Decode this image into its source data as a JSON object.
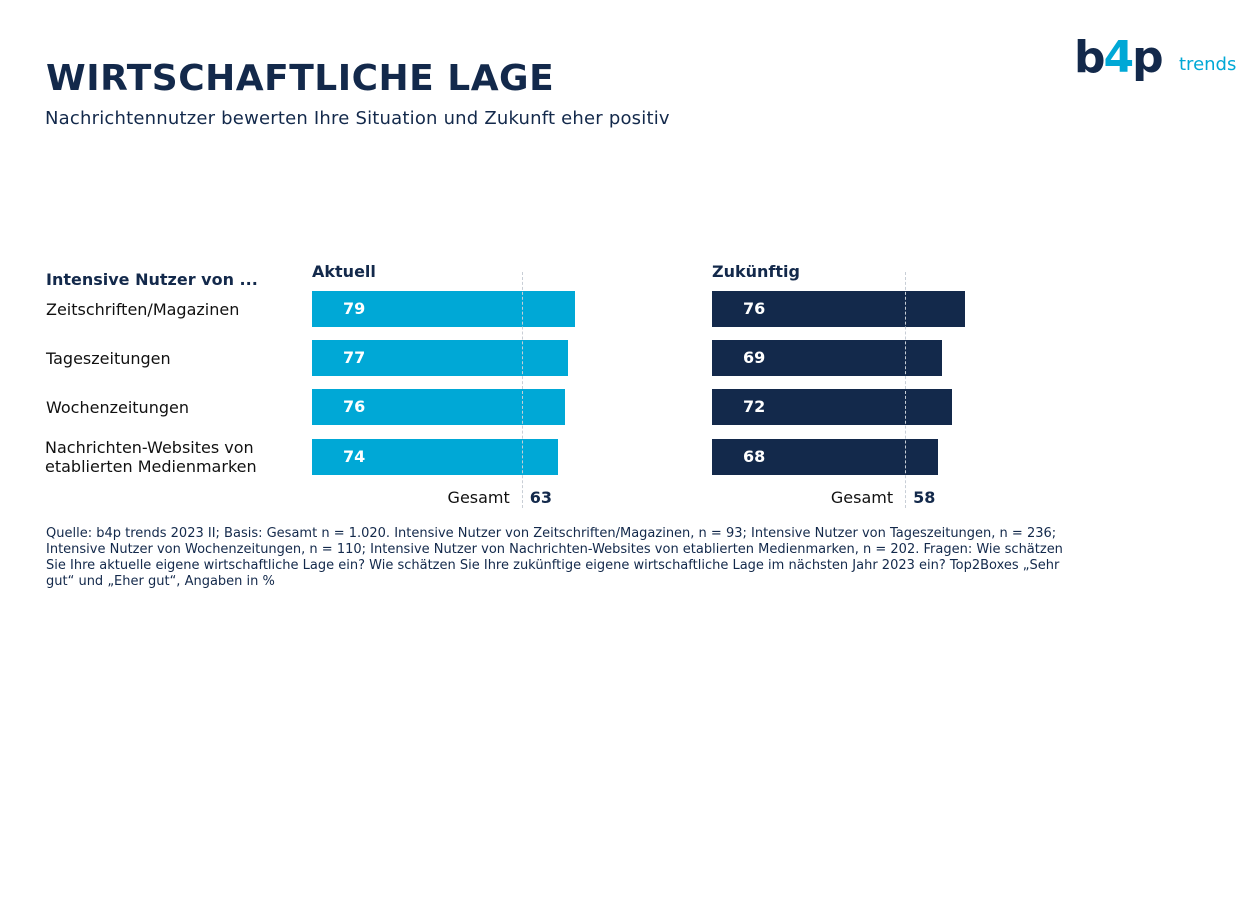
{
  "header": {
    "title": "WIRTSCHAFTLICHE LAGE",
    "subtitle": "Nachrichtennutzer bewerten Ihre Situation und Zukunft eher positiv"
  },
  "logo": {
    "text": "b4p trends"
  },
  "colors": {
    "aktuell": "#00a8d6",
    "zukuenftig": "#13294b",
    "text": "#13294b"
  },
  "chart_data": {
    "type": "bar",
    "orientation": "horizontal",
    "row_header": "Intensive Nutzer von ...",
    "categories": [
      "Zeitschriften/Magazinen",
      "Tageszeitungen",
      "Wochenzeitungen",
      "Nachrichten-Websites von\netablierten Medienmarken"
    ],
    "series": [
      {
        "name": "Aktuell",
        "values": [
          79,
          77,
          76,
          74
        ],
        "reference": {
          "label": "Gesamt",
          "value": 63
        }
      },
      {
        "name": "Zukünftig",
        "values": [
          76,
          69,
          72,
          68
        ],
        "reference": {
          "label": "Gesamt",
          "value": 58
        }
      }
    ],
    "xlim": [
      0,
      100
    ],
    "grid": false,
    "legend": "none"
  },
  "source": "Quelle: b4p trends 2023 II; Basis: Gesamt n = 1.020. Intensive Nutzer von Zeitschriften/Magazinen, n = 93; Intensive Nutzer von Tageszeitungen, n = 236; Intensive Nutzer von Wochenzeitungen, n = 110; Intensive Nutzer von Nachrichten-Websites von etablierten Medienmarken, n = 202. Fragen: Wie schätzen Sie Ihre aktuelle eigene wirtschaftliche Lage ein? Wie schätzen Sie Ihre zukünftige eigene wirtschaftliche Lage im nächsten Jahr 2023 ein? Top2Boxes „Sehr gut“ und „Eher gut“, Angaben in %"
}
